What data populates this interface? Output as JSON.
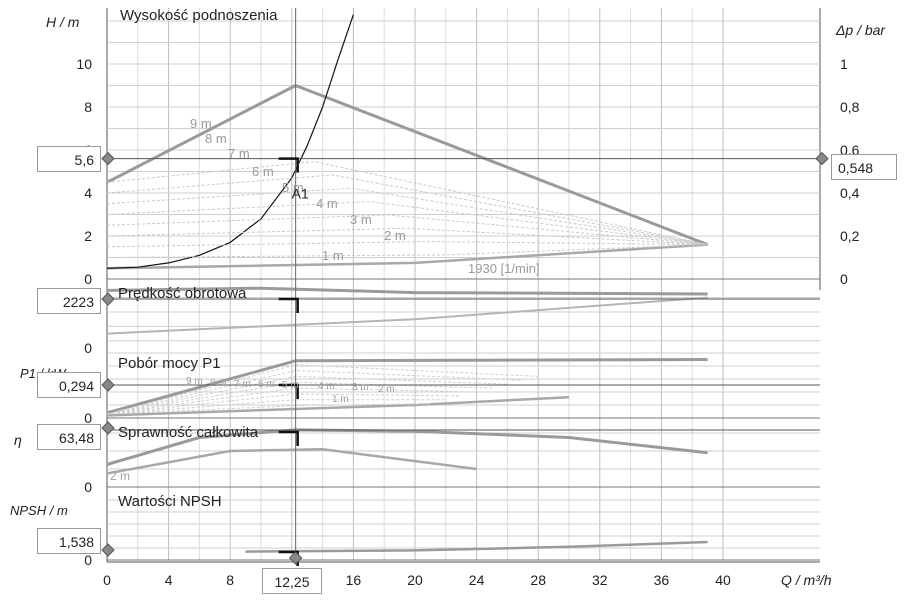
{
  "chart_data": {
    "type": "line",
    "x_axis": {
      "label": "Q / m³/h",
      "ticks": [
        "0",
        "4",
        "8",
        "12",
        "16",
        "20",
        "24",
        "28",
        "32",
        "36",
        "40"
      ],
      "range": [
        0,
        40
      ]
    },
    "operating_point": {
      "label": "A1",
      "Q": 12.25,
      "H": 5.6,
      "dp": 0.548,
      "speed": 2223,
      "P1": 0.294,
      "eta": 63.48,
      "npsh": 1.538
    },
    "readouts": {
      "q": "12,25",
      "h": "5,6",
      "dp": "0,548",
      "speed": "2223",
      "p1": "0,294",
      "eta": "63,48",
      "npsh": "1,538"
    },
    "panels": [
      {
        "id": "head",
        "title": "Wysokość podnoszenia",
        "ylabel": "H / m",
        "yticks": [
          "0",
          "2",
          "4",
          "6",
          "8",
          "10"
        ],
        "ylim": [
          0,
          12
        ],
        "y2label": "Δp / bar",
        "y2ticks": [
          "0",
          "0,2",
          "0,4",
          "0,6",
          "0,8",
          "1"
        ],
        "y2lim": [
          0,
          1.2
        ],
        "series": [
          {
            "role": "max_curve",
            "points": [
              [
                0,
                4.5
              ],
              [
                12.25,
                9
              ],
              [
                39,
                1.6
              ]
            ]
          },
          {
            "role": "min_curve",
            "points": [
              [
                0,
                0.5
              ],
              [
                20,
                0.75
              ],
              [
                39,
                1.6
              ]
            ]
          },
          {
            "role": "system_curve",
            "points": [
              [
                0,
                0.5
              ],
              [
                2,
                0.55
              ],
              [
                4,
                0.75
              ],
              [
                6,
                1.1
              ],
              [
                8,
                1.7
              ],
              [
                10,
                2.8
              ],
              [
                12,
                4.7
              ],
              [
                13,
                6.2
              ],
              [
                14,
                8
              ],
              [
                15,
                10.2
              ],
              [
                16,
                12.3
              ],
              [
                17,
                14.5
              ]
            ]
          }
        ],
        "curve_labels": [
          "9 m",
          "8 m",
          "7 m",
          "6 m",
          "5 m",
          "4 m",
          "3 m",
          "2 m",
          "1 m",
          "1930 [1/min]"
        ]
      },
      {
        "id": "speed",
        "title": "Prędkość obrotowa",
        "series": [
          {
            "role": "upper",
            "points": [
              [
                0,
                2300
              ],
              [
                10,
                2330
              ],
              [
                20,
                2270
              ],
              [
                39,
                2250
              ]
            ]
          },
          {
            "role": "lower",
            "points": [
              [
                0,
                1700
              ],
              [
                20,
                1900
              ],
              [
                39,
                2200
              ]
            ]
          }
        ]
      },
      {
        "id": "power",
        "title": "Pobór mocy P1",
        "ylabel": "P1 / kW",
        "series": [
          {
            "role": "max_curve",
            "points": [
              [
                0,
                0.04
              ],
              [
                12.25,
                0.44
              ],
              [
                39,
                0.45
              ]
            ]
          },
          {
            "role": "min_curve",
            "points": [
              [
                0,
                0.02
              ],
              [
                20,
                0.1
              ],
              [
                30,
                0.16
              ]
            ]
          }
        ],
        "curve_labels": [
          "9 m",
          "8 m",
          "7 m",
          "6 m",
          "5 m",
          "4 m",
          "3 m",
          "2 m",
          "1 m"
        ]
      },
      {
        "id": "eff",
        "title": "Sprawność całkowita",
        "ylabel": "η",
        "series": [
          {
            "role": "max_curve",
            "points": [
              [
                0,
                25
              ],
              [
                6,
                55
              ],
              [
                12.25,
                63.5
              ],
              [
                20,
                62
              ],
              [
                30,
                55
              ],
              [
                39,
                38
              ]
            ]
          },
          {
            "role": "min_curve",
            "points": [
              [
                0,
                15
              ],
              [
                8,
                40
              ],
              [
                14,
                42
              ],
              [
                24,
                20
              ]
            ]
          }
        ],
        "curve_labels": [
          "2 m"
        ]
      },
      {
        "id": "npsh",
        "title": "Wartości NPSH",
        "ylabel": "NPSH / m",
        "series": [
          {
            "role": "npsh",
            "points": [
              [
                9,
                1.4
              ],
              [
                20,
                1.6
              ],
              [
                30,
                2.2
              ],
              [
                39,
                3.0
              ]
            ]
          }
        ]
      }
    ]
  }
}
